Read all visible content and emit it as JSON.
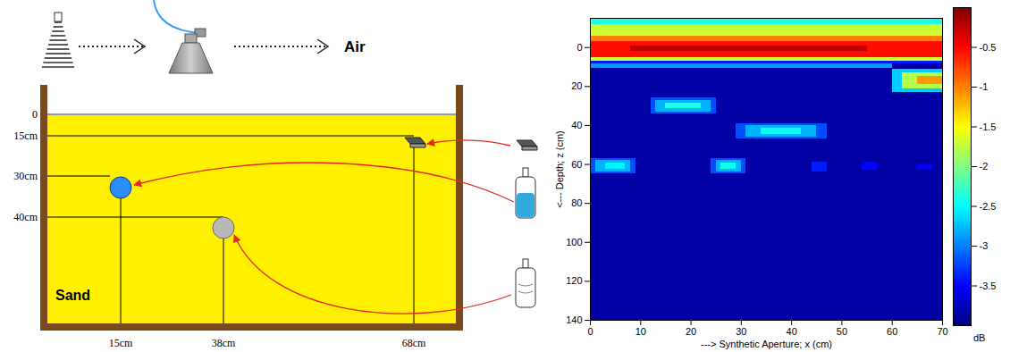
{
  "diagram": {
    "air_label": "Air",
    "sand_label": "Sand",
    "depth_labels": [
      "0",
      "15cm",
      "30cm",
      "40cm"
    ],
    "position_labels": [
      "15cm",
      "38cm",
      "68cm"
    ]
  },
  "chart_data": {
    "type": "heatmap",
    "x_label": "---> Synthetic Aperture; x (cm)",
    "y_label": "<--- Depth; z (cm)",
    "xlim": [
      0,
      70
    ],
    "xticks": [
      0,
      10,
      20,
      30,
      40,
      50,
      60,
      70
    ],
    "ylim": [
      -15,
      140
    ],
    "yticks": [
      0,
      20,
      40,
      60,
      80,
      100,
      120,
      140
    ],
    "cells": [
      {
        "x": [
          0,
          70
        ],
        "z": [
          -15,
          140
        ],
        "value": -3.85
      },
      {
        "x": [
          0,
          70
        ],
        "z": [
          -15,
          -12
        ],
        "value": -2.4
      },
      {
        "x": [
          0,
          70
        ],
        "z": [
          -12,
          -6
        ],
        "value": -1.7
      },
      {
        "x": [
          0,
          70
        ],
        "z": [
          -6,
          -3
        ],
        "value": -1.0
      },
      {
        "x": [
          0,
          70
        ],
        "z": [
          -3,
          5
        ],
        "value": -0.55
      },
      {
        "x": [
          8,
          55
        ],
        "z": [
          -1,
          2
        ],
        "value": -0.25
      },
      {
        "x": [
          0,
          70
        ],
        "z": [
          5,
          7
        ],
        "value": -1.7
      },
      {
        "x": [
          0,
          70
        ],
        "z": [
          7,
          8.5
        ],
        "value": -3.4
      },
      {
        "x": [
          0,
          60
        ],
        "z": [
          8.5,
          10.5
        ],
        "value": -2.9
      },
      {
        "x": [
          60,
          70
        ],
        "z": [
          11,
          23
        ],
        "value": -2.7
      },
      {
        "x": [
          62,
          70
        ],
        "z": [
          13,
          21
        ],
        "value": -1.8
      },
      {
        "x": [
          65,
          70
        ],
        "z": [
          15,
          19
        ],
        "value": -1.1
      },
      {
        "x": [
          12,
          25
        ],
        "z": [
          26,
          34
        ],
        "value": -3.2
      },
      {
        "x": [
          13,
          24
        ],
        "z": [
          27,
          33
        ],
        "value": -2.8
      },
      {
        "x": [
          15,
          22
        ],
        "z": [
          28.5,
          31.5
        ],
        "value": -2.4
      },
      {
        "x": [
          29,
          47
        ],
        "z": [
          39,
          47
        ],
        "value": -3.2
      },
      {
        "x": [
          31,
          45
        ],
        "z": [
          40,
          46
        ],
        "value": -2.8
      },
      {
        "x": [
          34,
          42
        ],
        "z": [
          41.5,
          44.5
        ],
        "value": -2.45
      },
      {
        "x": [
          0,
          9
        ],
        "z": [
          57,
          65
        ],
        "value": -3.2
      },
      {
        "x": [
          1,
          8
        ],
        "z": [
          58,
          64
        ],
        "value": -2.8
      },
      {
        "x": [
          3,
          7
        ],
        "z": [
          59.5,
          62.5
        ],
        "value": -2.55
      },
      {
        "x": [
          24,
          31
        ],
        "z": [
          57,
          65
        ],
        "value": -3.2
      },
      {
        "x": [
          25,
          30
        ],
        "z": [
          58,
          64
        ],
        "value": -2.8
      },
      {
        "x": [
          26,
          29
        ],
        "z": [
          59.5,
          62.5
        ],
        "value": -2.45
      },
      {
        "x": [
          44,
          47
        ],
        "z": [
          59,
          64
        ],
        "value": -3.4
      },
      {
        "x": [
          54,
          57
        ],
        "z": [
          59,
          63
        ],
        "value": -3.5
      },
      {
        "x": [
          65,
          68
        ],
        "z": [
          60,
          63
        ],
        "value": -3.55
      }
    ],
    "colorbar": {
      "label": "dB",
      "lim": [
        -4,
        0
      ],
      "ticks": [
        -0.5,
        -1,
        -1.5,
        -2,
        -2.5,
        -3,
        -3.5
      ]
    }
  }
}
